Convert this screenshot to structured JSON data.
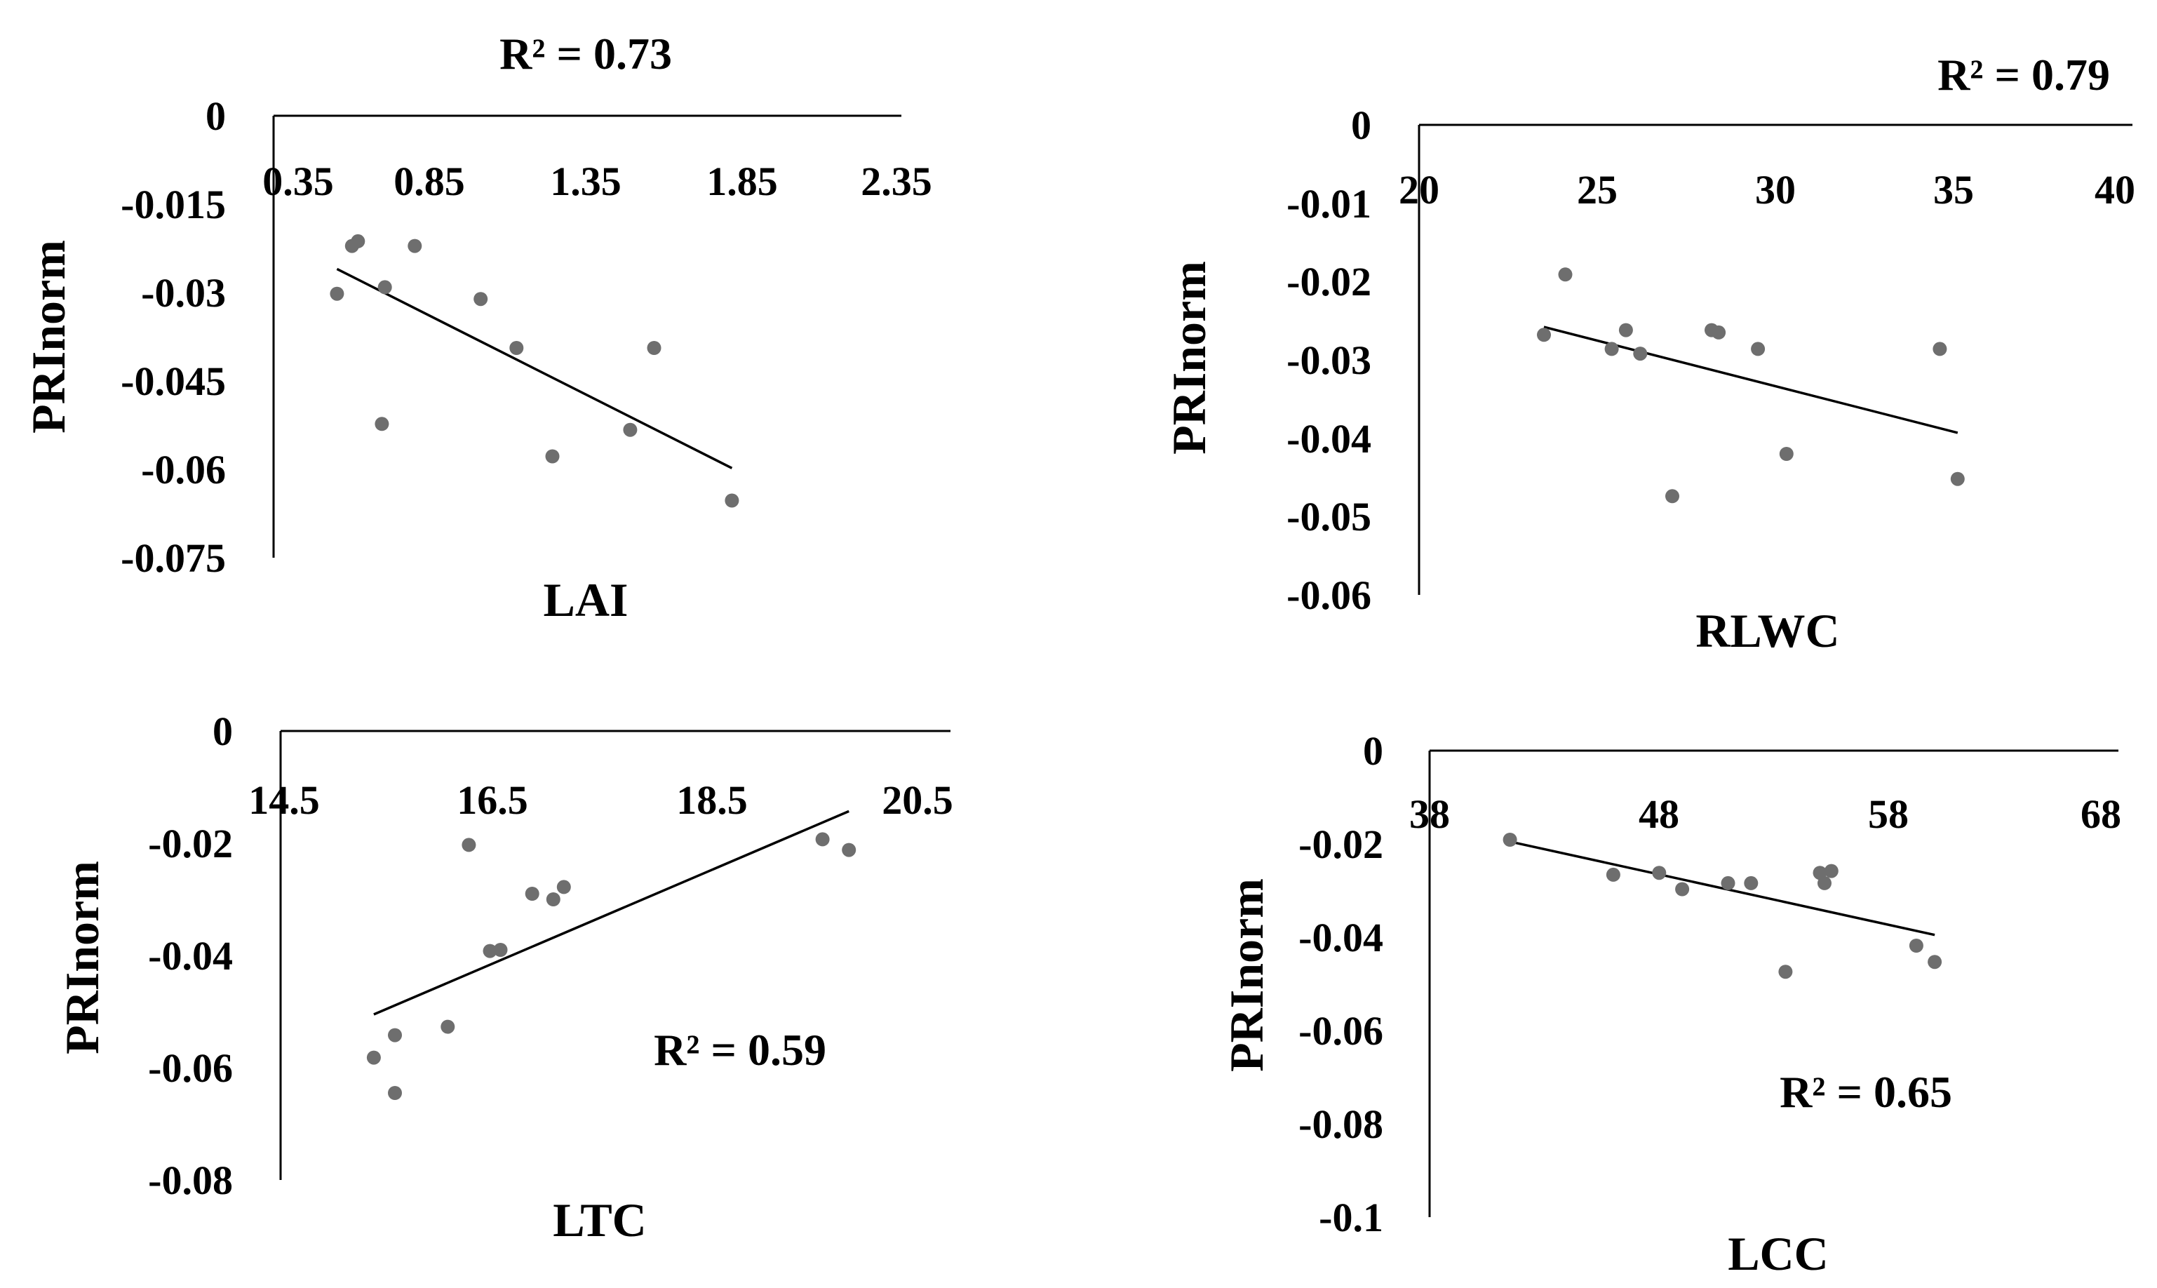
{
  "chart_data": [
    {
      "type": "scatter",
      "id": "lai",
      "xlabel": "LAI",
      "ylabel": "PRInorm",
      "xticks": [
        0.35,
        0.85,
        1.35,
        1.85,
        2.35
      ],
      "xtick_labels": [
        "0.35",
        "0.85",
        "1.35",
        "1.85",
        "2.35"
      ],
      "yticks": [
        0,
        -0.015,
        -0.03,
        -0.045,
        -0.06,
        -0.075
      ],
      "ytick_labels": [
        "0",
        "-0.015",
        "-0.03",
        "-0.045",
        "-0.06",
        "-0.075"
      ],
      "xlim": [
        0.35,
        2.35
      ],
      "ylim": [
        -0.075,
        0
      ],
      "r2_label": "R² = 0.73",
      "points": [
        [
          0.48,
          -0.0302
        ],
        [
          0.53,
          -0.0221
        ],
        [
          0.55,
          -0.0213
        ],
        [
          0.64,
          -0.0291
        ],
        [
          0.63,
          -0.0523
        ],
        [
          0.74,
          -0.0221
        ],
        [
          0.96,
          -0.0311
        ],
        [
          1.08,
          -0.0394
        ],
        [
          1.2,
          -0.0578
        ],
        [
          1.46,
          -0.0533
        ],
        [
          1.54,
          -0.0394
        ],
        [
          1.8,
          -0.0653
        ]
      ],
      "trendline": [
        [
          0.48,
          -0.026
        ],
        [
          1.8,
          -0.0598
        ]
      ]
    },
    {
      "type": "scatter",
      "id": "rlwc",
      "xlabel": "RLWC",
      "ylabel": "PRInorm",
      "xticks": [
        20,
        25,
        30,
        35,
        40
      ],
      "xtick_labels": [
        "20",
        "25",
        "30",
        "35",
        "40"
      ],
      "yticks": [
        0,
        -0.01,
        -0.02,
        -0.03,
        -0.04,
        -0.05,
        -0.06
      ],
      "ytick_labels": [
        "0",
        "-0.01",
        "-0.02",
        "-0.03",
        "-0.04",
        "-0.05",
        "-0.06"
      ],
      "xlim": [
        20,
        40
      ],
      "ylim": [
        -0.06,
        0
      ],
      "r2_label": "R² = 0.79",
      "points": [
        [
          23.5,
          -0.0268
        ],
        [
          24.1,
          -0.0191
        ],
        [
          25.4,
          -0.0286
        ],
        [
          25.8,
          -0.0262
        ],
        [
          26.2,
          -0.0292
        ],
        [
          27.1,
          -0.0474
        ],
        [
          28.2,
          -0.0262
        ],
        [
          28.4,
          -0.0265
        ],
        [
          29.5,
          -0.0286
        ],
        [
          30.3,
          -0.042
        ],
        [
          34.6,
          -0.0286
        ],
        [
          35.1,
          -0.0452
        ]
      ],
      "trendline": [
        [
          23.5,
          -0.0258
        ],
        [
          35.1,
          -0.0393
        ]
      ]
    },
    {
      "type": "scatter",
      "id": "ltc",
      "xlabel": "LTC",
      "ylabel": "PRInorm",
      "xticks": [
        14.5,
        16.5,
        18.5,
        20.5
      ],
      "xtick_labels": [
        "14.5",
        "16.5",
        "18.5",
        "20.5"
      ],
      "yticks": [
        0,
        -0.02,
        -0.04,
        -0.06,
        -0.08
      ],
      "ytick_labels": [
        "0",
        "-0.02",
        "-0.04",
        "-0.06",
        "-0.08"
      ],
      "xlim": [
        14.5,
        20.5
      ],
      "ylim": [
        -0.08,
        0
      ],
      "r2_label": "R² = 0.59",
      "points": [
        [
          15.35,
          -0.0582
        ],
        [
          15.55,
          -0.0542
        ],
        [
          15.55,
          -0.0645
        ],
        [
          16.05,
          -0.0527
        ],
        [
          16.25,
          -0.0203
        ],
        [
          16.45,
          -0.0392
        ],
        [
          16.55,
          -0.039
        ],
        [
          16.85,
          -0.029
        ],
        [
          17.05,
          -0.03
        ],
        [
          17.15,
          -0.0278
        ],
        [
          19.6,
          -0.0193
        ],
        [
          19.85,
          -0.0212
        ]
      ],
      "trendline": [
        [
          15.35,
          -0.0505
        ],
        [
          19.85,
          -0.0143
        ]
      ]
    },
    {
      "type": "scatter",
      "id": "lcc",
      "xlabel": "LCC",
      "ylabel": "PRInorm",
      "xticks": [
        38,
        48,
        58,
        68
      ],
      "xtick_labels": [
        "38",
        "48",
        "58",
        "68"
      ],
      "yticks": [
        0,
        -0.02,
        -0.04,
        -0.06,
        -0.08,
        -0.1
      ],
      "ytick_labels": [
        "0",
        "-0.02",
        "-0.04",
        "-0.06",
        "-0.08",
        "-0.1"
      ],
      "xlim": [
        38,
        68
      ],
      "ylim": [
        -0.1,
        0
      ],
      "r2_label": "R² = 0.65",
      "points": [
        [
          41.5,
          -0.0191
        ],
        [
          46.0,
          -0.0266
        ],
        [
          48.0,
          -0.0262
        ],
        [
          49.0,
          -0.0297
        ],
        [
          51.0,
          -0.0284
        ],
        [
          52.0,
          -0.0284
        ],
        [
          53.5,
          -0.0474
        ],
        [
          55.0,
          -0.0262
        ],
        [
          55.2,
          -0.0284
        ],
        [
          55.5,
          -0.0258
        ],
        [
          59.2,
          -0.0418
        ],
        [
          60.0,
          -0.0453
        ]
      ],
      "trendline": [
        [
          41.5,
          -0.0195
        ],
        [
          60.0,
          -0.0395
        ]
      ]
    }
  ]
}
